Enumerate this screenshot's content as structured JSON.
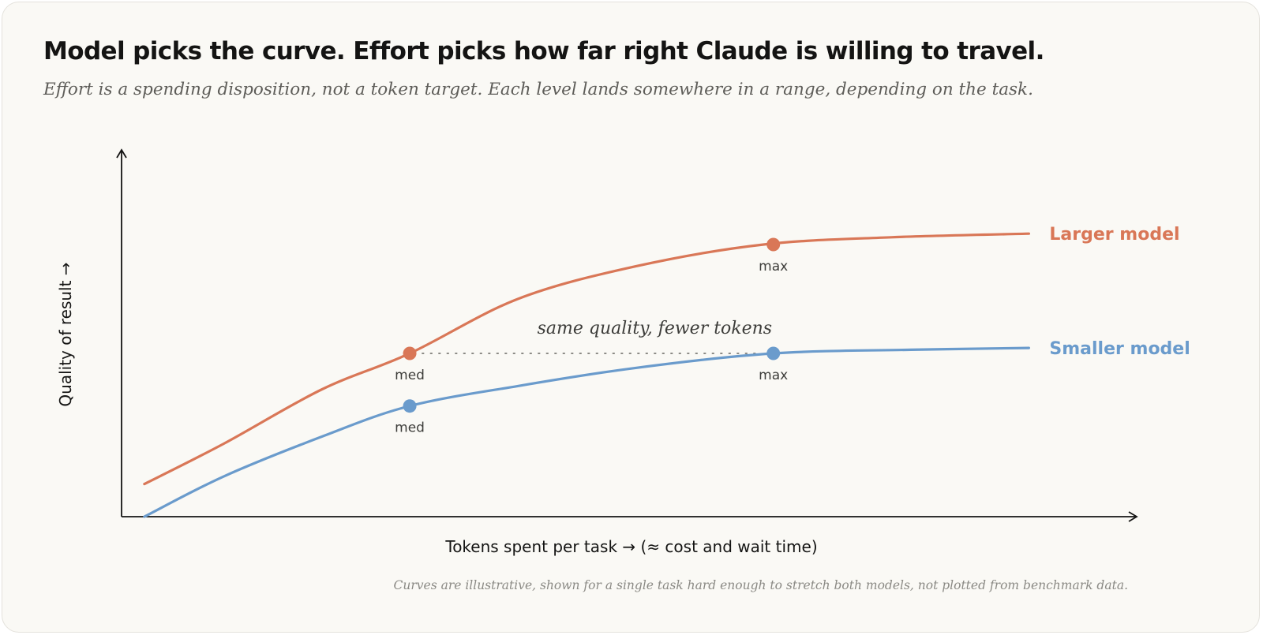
{
  "header": {
    "title": "Model picks the curve. Effort picks how far right Claude is willing to travel.",
    "subtitle": "Effort is a spending disposition, not a token target. Each level lands somewhere in a range, depending on the task."
  },
  "footnote": "Curves are illustrative, shown for a single task hard enough to stretch both models, not plotted from benchmark data.",
  "chart_data": {
    "type": "line",
    "xlabel": "Tokens spent per task → (≈ cost and wait time)",
    "ylabel": "Quality of result →",
    "xlim": [
      0,
      100
    ],
    "ylim": [
      0,
      100
    ],
    "grid": false,
    "series": [
      {
        "name": "Larger model",
        "color": "#d97757",
        "x": [
          2,
          10,
          20,
          29,
          40,
          52,
          65,
          78,
          92
        ],
        "y": [
          9,
          20,
          35,
          45,
          60,
          69,
          75,
          77,
          78
        ],
        "markers": [
          {
            "x": 29,
            "y": 45,
            "label": "med"
          },
          {
            "x": 66,
            "y": 75,
            "label": "max"
          }
        ]
      },
      {
        "name": "Smaller model",
        "color": "#6a9bcc",
        "x": [
          2,
          10,
          20,
          29,
          40,
          52,
          66,
          80,
          92
        ],
        "y": [
          0,
          11,
          22,
          30.5,
          36,
          41,
          45,
          46,
          46.5
        ],
        "markers": [
          {
            "x": 29,
            "y": 30.5,
            "label": "med"
          },
          {
            "x": 66,
            "y": 45,
            "label": "max"
          }
        ]
      }
    ],
    "annotations": [
      {
        "text": "same quality, fewer tokens",
        "style": "dotted",
        "from": {
          "x": 29,
          "y": 45
        },
        "to": {
          "x": 66,
          "y": 45
        }
      }
    ],
    "colors": {
      "axis": "#141413",
      "dotted": "#8b8a85"
    }
  }
}
